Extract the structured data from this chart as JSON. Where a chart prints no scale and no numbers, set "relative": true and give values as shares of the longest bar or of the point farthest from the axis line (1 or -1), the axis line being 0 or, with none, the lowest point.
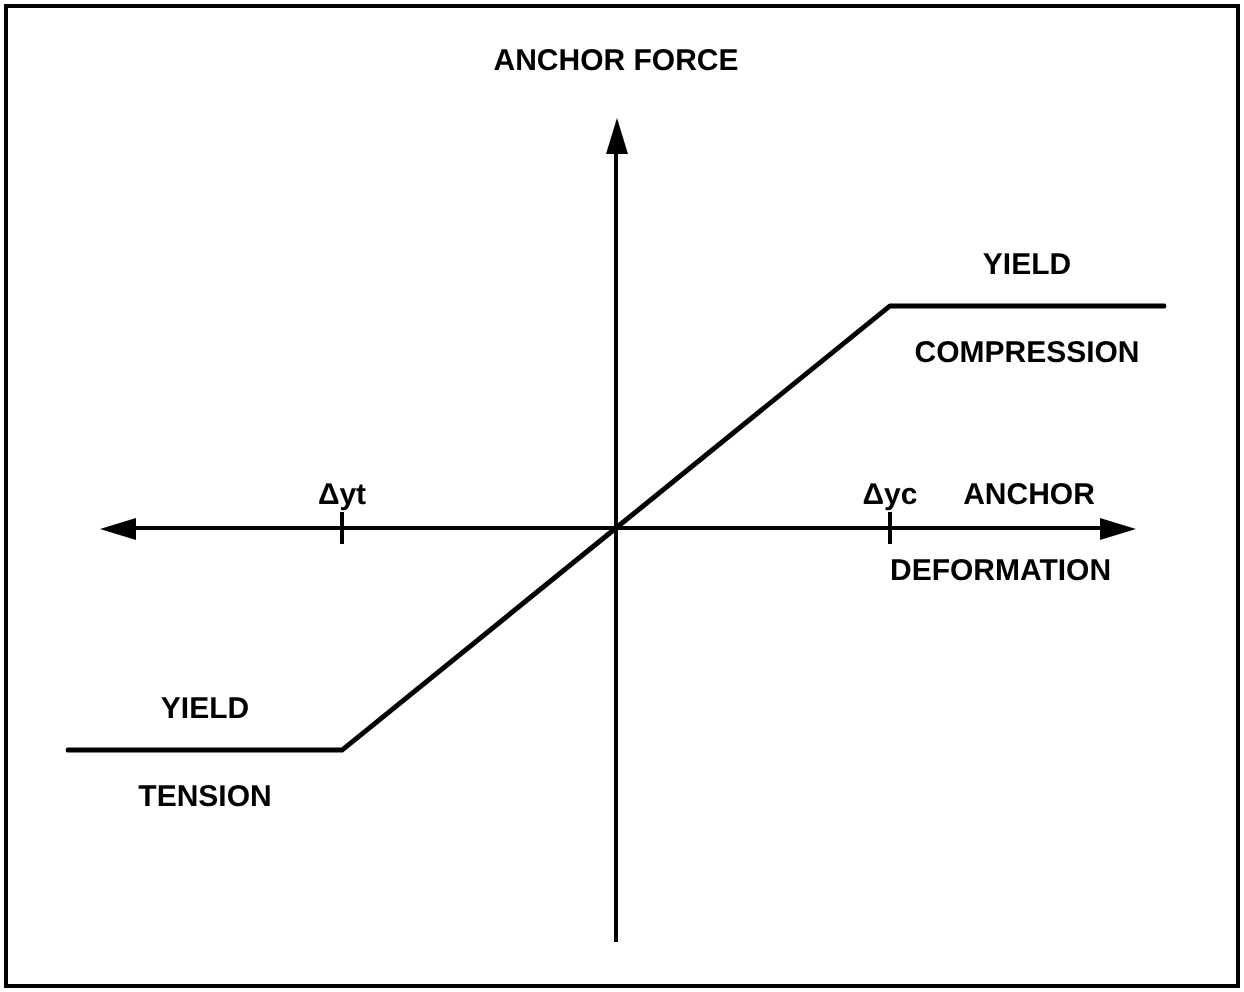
{
  "chart_data": {
    "type": "line",
    "relative": true,
    "xlabel": "ANCHOR DEFORMATION",
    "categories": [
      null,
      "Δyt",
      null,
      "Δyc",
      null
    ],
    "series": [
      {
        "color": "#000000",
        "values": [
          -1,
          -1,
          0,
          1,
          1
        ]
      }
    ],
    "marker": "none",
    "legend": false,
    "annotations": [
      "ANCHOR FORCE",
      {
        "text": "YIELD",
        "y": 1
      },
      {
        "text": "COMPRESSION",
        "y": 1
      },
      {
        "text": "YIELD",
        "y": -1
      },
      {
        "text": "TENSION",
        "y": -1
      }
    ]
  }
}
